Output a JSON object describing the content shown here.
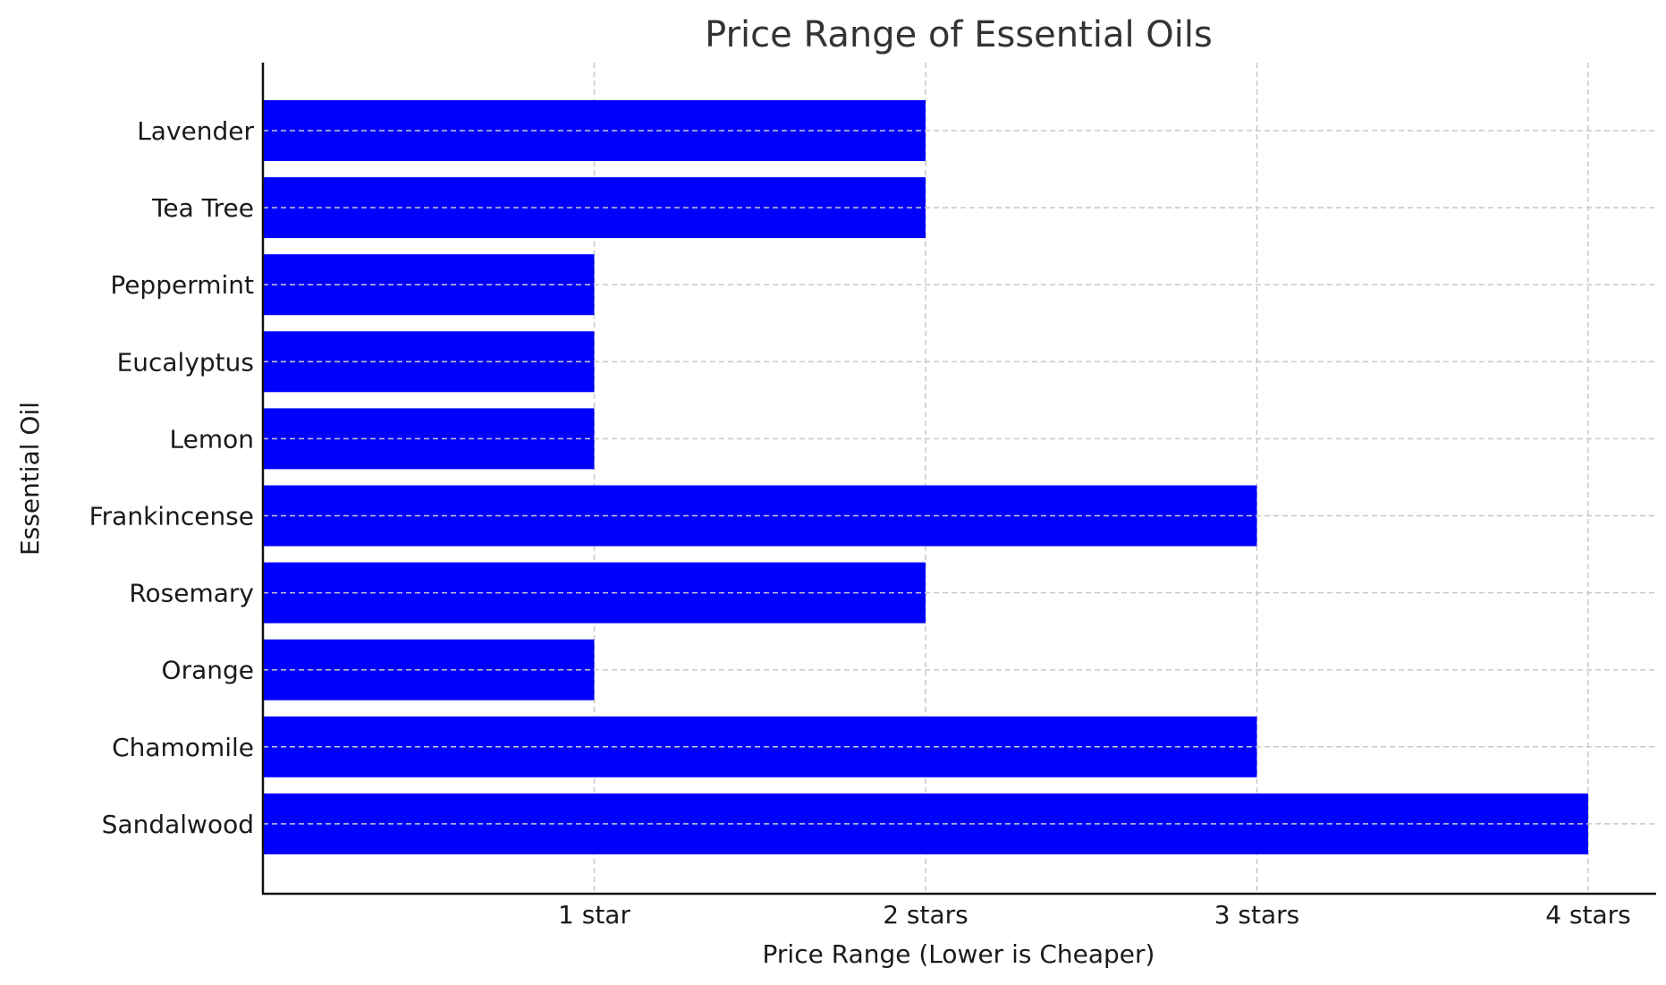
{
  "chart_data": {
    "type": "bar",
    "orientation": "horizontal",
    "title": "Price Range of Essential Oils",
    "xlabel": "Price Range (Lower is Cheaper)",
    "ylabel": "Essential Oil",
    "categories": [
      "Lavender",
      "Tea Tree",
      "Peppermint",
      "Eucalyptus",
      "Lemon",
      "Frankincense",
      "Rosemary",
      "Orange",
      "Chamomile",
      "Sandalwood"
    ],
    "values": [
      2,
      2,
      1,
      1,
      1,
      3,
      2,
      1,
      3,
      4
    ],
    "xticks": [
      1,
      2,
      3,
      4
    ],
    "xtick_labels": [
      "1 star",
      "2 stars",
      "3 stars",
      "4 stars"
    ],
    "xlim": [
      0,
      4.2
    ],
    "grid": true,
    "bar_color": "#0000ff"
  }
}
